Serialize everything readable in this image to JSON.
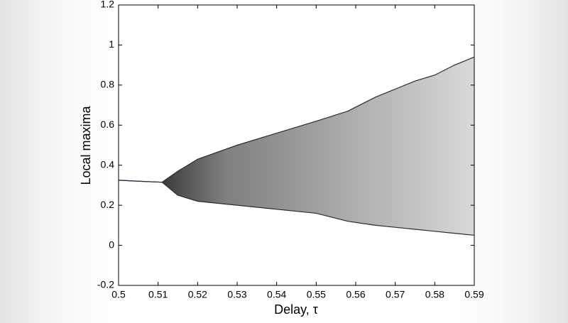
{
  "chart_data": {
    "type": "band",
    "x_label": "Delay, τ",
    "y_label": "Local maxima",
    "x": [
      0.5,
      0.505,
      0.511,
      0.515,
      0.52,
      0.53,
      0.54,
      0.55,
      0.558,
      0.565,
      0.57,
      0.575,
      0.58,
      0.585,
      0.59
    ],
    "series": [
      {
        "color": "#2a2a3a",
        "values": [
          0.325,
          0.32,
          0.315,
          0.37,
          0.43,
          0.5,
          0.56,
          0.62,
          0.67,
          0.74,
          0.78,
          0.82,
          0.85,
          0.9,
          0.94
        ]
      },
      {
        "color": "#2a2a3a",
        "values": [
          0.325,
          0.32,
          0.315,
          0.25,
          0.22,
          0.2,
          0.18,
          0.16,
          0.12,
          0.1,
          0.09,
          0.08,
          0.07,
          0.06,
          0.05
        ]
      }
    ],
    "xlim": [
      0.5,
      0.59
    ],
    "ylim": [
      -0.2,
      1.2
    ],
    "xticks": [
      0.5,
      0.51,
      0.52,
      0.53,
      0.54,
      0.55,
      0.56,
      0.57,
      0.58,
      0.59
    ],
    "yticks": [
      -0.2,
      0,
      0.2,
      0.4,
      0.6,
      0.8,
      1,
      1.2
    ],
    "grid": false
  }
}
